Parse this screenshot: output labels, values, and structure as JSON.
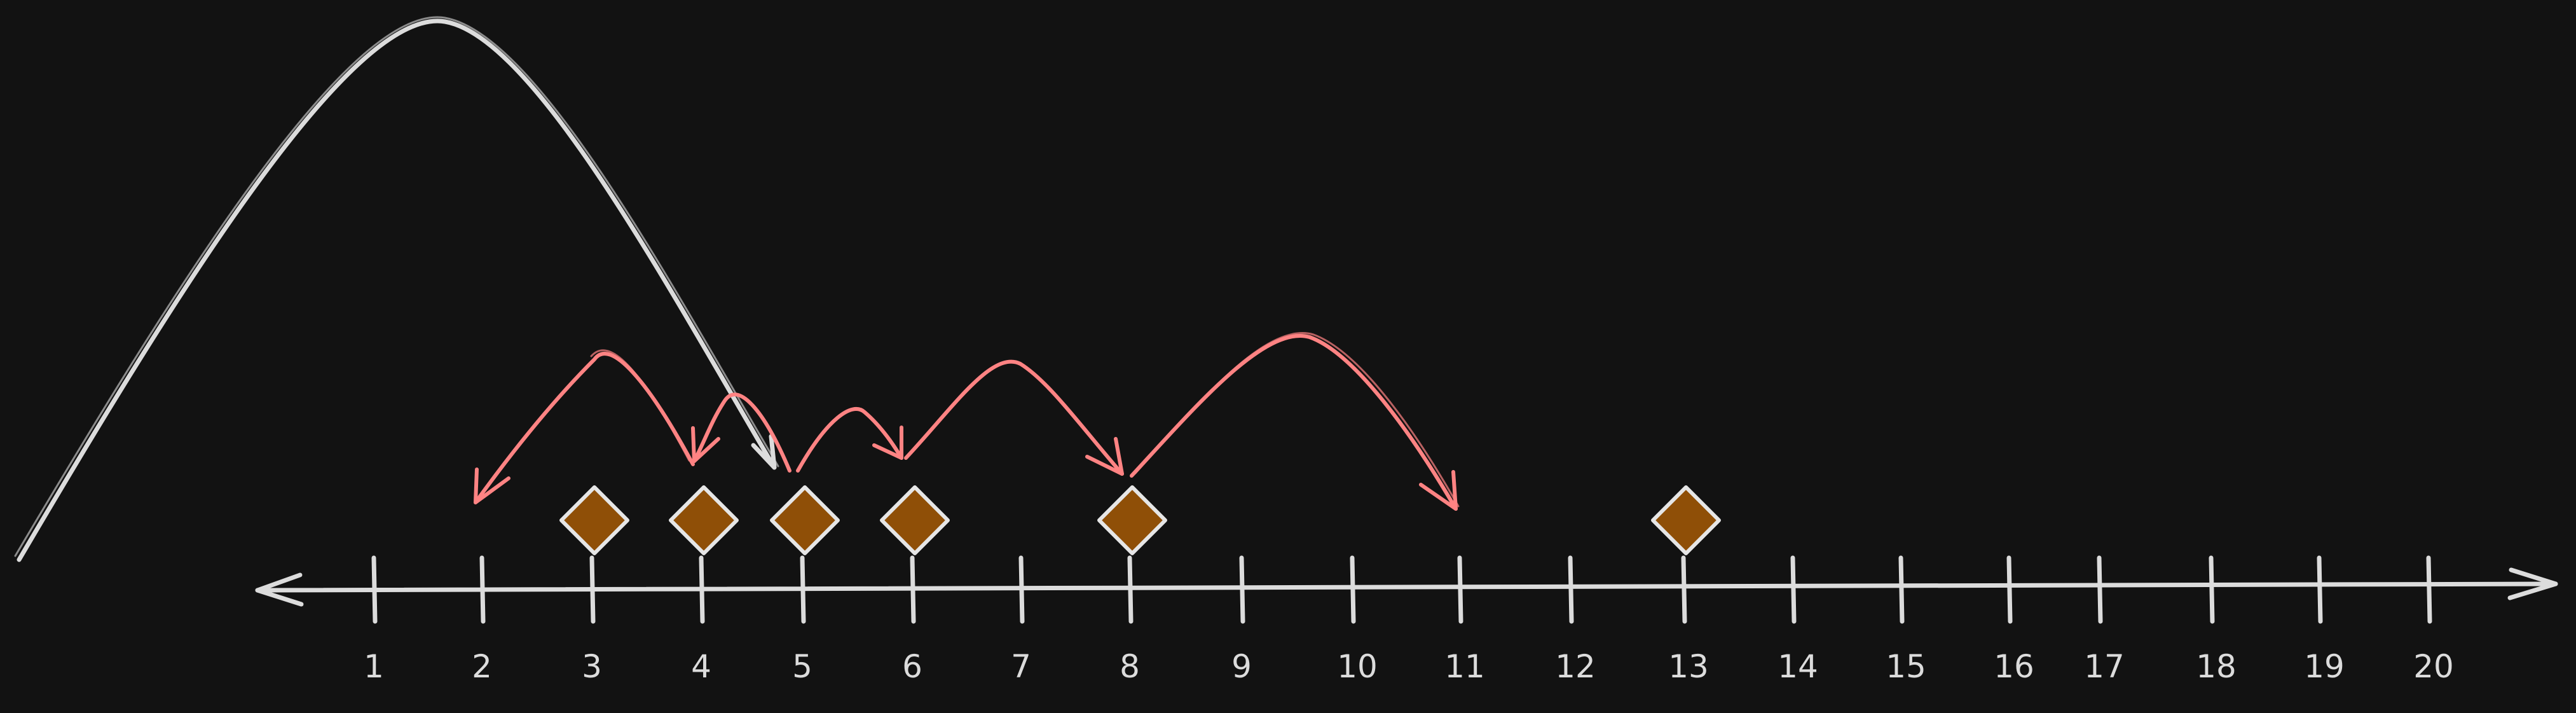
{
  "colors": {
    "background": "#121212",
    "axis": "#dcdcdc",
    "label": "#dcdcdc",
    "jump_arrow": "#ff8383",
    "marker_fill": "#8f4f07",
    "marker_stroke": "#e6e6e6"
  },
  "number_line": {
    "tick_labels": [
      "1",
      "2",
      "3",
      "4",
      "5",
      "6",
      "7",
      "8",
      "9",
      "10",
      "11",
      "12",
      "13",
      "14",
      "15",
      "16",
      "17",
      "18",
      "19",
      "20"
    ],
    "arrowheads": "both-ends"
  },
  "markers": {
    "shape": "diamond",
    "positions": [
      3,
      4,
      5,
      6,
      8,
      13
    ]
  },
  "big_jump": {
    "from": 0,
    "to": 5
  },
  "red_jumps": [
    {
      "from": 4,
      "to": 2
    },
    {
      "from": 5,
      "to": 4
    },
    {
      "from": 5,
      "to": 6
    },
    {
      "from": 6,
      "to": 8
    },
    {
      "from": 8,
      "to": 11
    }
  ]
}
